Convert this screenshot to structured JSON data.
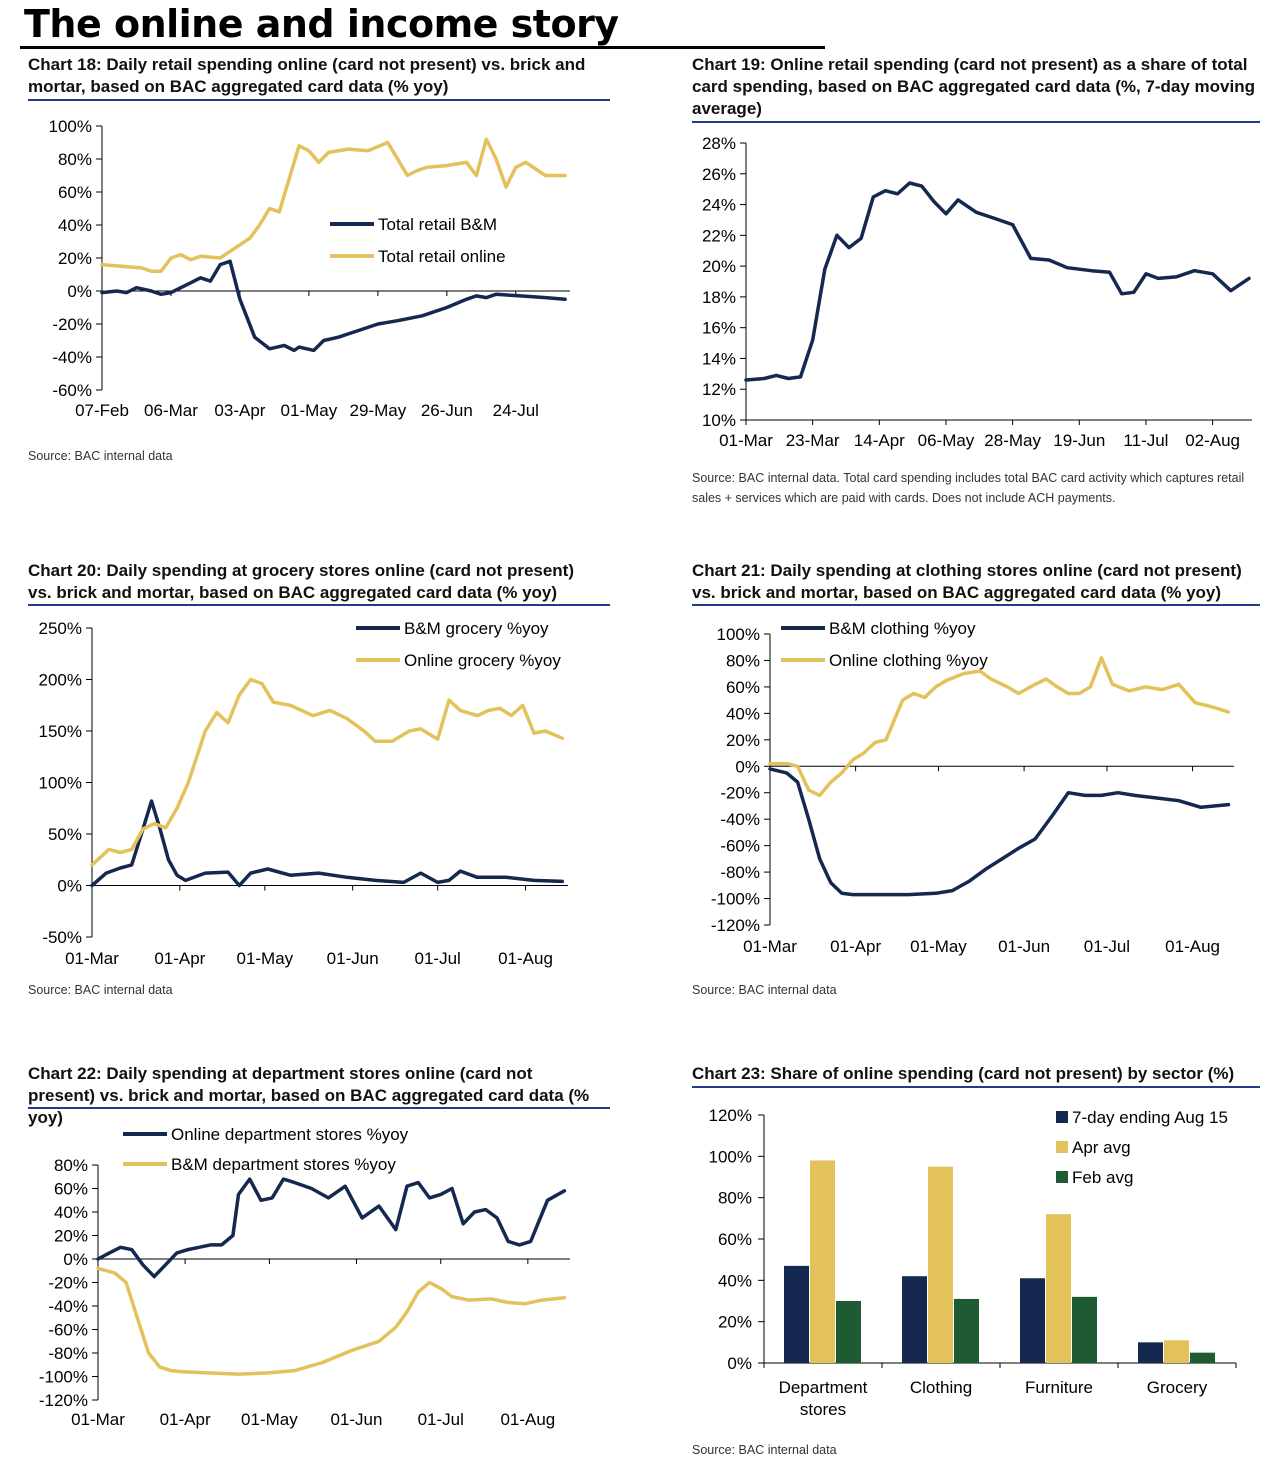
{
  "page": {
    "title": "The online and income story"
  },
  "colors": {
    "navy": "#142850",
    "gold": "#e3c15b",
    "green": "#1e5a32",
    "rule": "#1f3c88"
  },
  "chart_data": [
    {
      "id": "c18",
      "type": "line",
      "title": "Chart 18: Daily retail spending online (card not present) vs. brick and mortar, based on BAC aggregated card data (% yoy)",
      "source": "Source: BAC internal data",
      "ylim": [
        -60,
        100
      ],
      "yticks": [
        -60,
        -40,
        -20,
        0,
        20,
        40,
        60,
        80,
        100
      ],
      "yfmt": "%",
      "xlim": [
        0,
        190
      ],
      "xticks": [
        0,
        28,
        56,
        84,
        112,
        140,
        168
      ],
      "xlabels": [
        "07-Feb",
        "06-Mar",
        "03-Apr",
        "01-May",
        "29-May",
        "26-Jun",
        "24-Jul"
      ],
      "legend": "right",
      "series": [
        {
          "name": "Total retail B&M",
          "color": "navy",
          "x": [
            0,
            6,
            10,
            14,
            20,
            24,
            28,
            32,
            36,
            40,
            44,
            48,
            52,
            56,
            62,
            68,
            74,
            78,
            80,
            86,
            90,
            96,
            100,
            104,
            112,
            120,
            130,
            140,
            148,
            152,
            156,
            160,
            170,
            180,
            188
          ],
          "y": [
            -1,
            0,
            -1,
            2,
            0,
            -2,
            -1,
            2,
            5,
            8,
            6,
            16,
            18,
            -5,
            -28,
            -35,
            -33,
            -36,
            -34,
            -36,
            -30,
            -28,
            -26,
            -24,
            -20,
            -18,
            -15,
            -10,
            -5,
            -3,
            -4,
            -2,
            -3,
            -4,
            -5
          ]
        },
        {
          "name": "Total retail online",
          "color": "gold",
          "x": [
            0,
            8,
            16,
            20,
            24,
            28,
            32,
            36,
            40,
            48,
            56,
            60,
            64,
            68,
            72,
            76,
            80,
            84,
            88,
            92,
            100,
            108,
            116,
            120,
            124,
            128,
            132,
            140,
            148,
            152,
            156,
            160,
            164,
            168,
            172,
            180,
            188
          ],
          "y": [
            16,
            15,
            14,
            12,
            12,
            20,
            22,
            19,
            21,
            20,
            28,
            32,
            40,
            50,
            48,
            68,
            88,
            85,
            78,
            84,
            86,
            85,
            90,
            80,
            70,
            73,
            75,
            76,
            78,
            70,
            92,
            80,
            63,
            75,
            78,
            70,
            70
          ]
        }
      ]
    },
    {
      "id": "c19",
      "type": "line",
      "title": "Chart 19: Online retail spending (card not present) as a share of total card spending, based on BAC aggregated card data (%, 7-day moving average)",
      "source": "Source: BAC internal data. Total card spending includes total BAC card activity which captures retail sales + services which are paid with cards. Does not include ACH payments.",
      "ylim": [
        10,
        28
      ],
      "yticks": [
        10,
        12,
        14,
        16,
        18,
        20,
        22,
        24,
        26,
        28
      ],
      "yfmt": "%",
      "xlim": [
        0,
        167
      ],
      "xticks": [
        0,
        22,
        44,
        66,
        88,
        110,
        132,
        154
      ],
      "xlabels": [
        "01-Mar",
        "23-Mar",
        "14-Apr",
        "06-May",
        "28-May",
        "19-Jun",
        "11-Jul",
        "02-Aug"
      ],
      "series": [
        {
          "name": "",
          "color": "navy",
          "x": [
            0,
            6,
            10,
            14,
            18,
            22,
            26,
            30,
            34,
            38,
            42,
            46,
            50,
            54,
            58,
            62,
            66,
            70,
            76,
            82,
            88,
            94,
            100,
            106,
            114,
            120,
            124,
            128,
            132,
            136,
            142,
            148,
            154,
            160,
            166
          ],
          "y": [
            12.6,
            12.7,
            12.9,
            12.7,
            12.8,
            15.2,
            19.8,
            22.0,
            21.2,
            21.8,
            24.5,
            24.9,
            24.7,
            25.4,
            25.2,
            24.2,
            23.4,
            24.3,
            23.5,
            23.1,
            22.7,
            20.5,
            20.4,
            19.9,
            19.7,
            19.6,
            18.2,
            18.3,
            19.5,
            19.2,
            19.3,
            19.7,
            19.5,
            18.4,
            19.2
          ]
        }
      ]
    },
    {
      "id": "c20",
      "type": "line",
      "title": "Chart 20: Daily spending at grocery stores online (card not present) vs. brick and mortar, based on BAC aggregated card data (% yoy)",
      "source": "Source: BAC internal data",
      "ylim": [
        -50,
        250
      ],
      "yticks": [
        -50,
        0,
        50,
        100,
        150,
        200,
        250
      ],
      "yfmt": "%",
      "xlim": [
        0,
        168
      ],
      "xticks": [
        0,
        31,
        61,
        92,
        122,
        153
      ],
      "xlabels": [
        "01-Mar",
        "01-Apr",
        "01-May",
        "01-Jun",
        "01-Jul",
        "01-Aug"
      ],
      "legend": "top-right",
      "series": [
        {
          "name": "B&M grocery %yoy",
          "color": "navy",
          "x": [
            0,
            5,
            10,
            14,
            18,
            21,
            24,
            27,
            30,
            33,
            40,
            48,
            52,
            56,
            62,
            70,
            80,
            90,
            100,
            110,
            116,
            122,
            126,
            130,
            136,
            146,
            156,
            166
          ],
          "y": [
            0,
            12,
            17,
            20,
            55,
            82,
            55,
            25,
            10,
            5,
            12,
            13,
            0,
            12,
            16,
            10,
            12,
            8,
            5,
            3,
            12,
            3,
            5,
            14,
            8,
            8,
            5,
            4
          ]
        },
        {
          "name": "Online grocery %yoy",
          "color": "gold",
          "x": [
            0,
            6,
            10,
            14,
            18,
            22,
            26,
            30,
            34,
            40,
            44,
            48,
            52,
            56,
            60,
            64,
            70,
            78,
            84,
            90,
            96,
            100,
            106,
            112,
            116,
            122,
            126,
            130,
            136,
            140,
            144,
            148,
            152,
            156,
            160,
            166
          ],
          "y": [
            20,
            35,
            32,
            35,
            55,
            60,
            56,
            75,
            100,
            150,
            168,
            158,
            185,
            200,
            196,
            178,
            175,
            165,
            170,
            162,
            150,
            140,
            140,
            150,
            152,
            142,
            180,
            170,
            165,
            170,
            172,
            165,
            175,
            148,
            150,
            143
          ]
        }
      ]
    },
    {
      "id": "c21",
      "type": "line",
      "title": "Chart 21: Daily spending at clothing stores online (card not present) vs. brick and mortar, based on BAC aggregated card data (% yoy)",
      "source": "Source: BAC internal data",
      "ylim": [
        -120,
        100
      ],
      "yticks": [
        -120,
        -100,
        -80,
        -60,
        -40,
        -20,
        0,
        20,
        40,
        60,
        80,
        100
      ],
      "yfmt": "%",
      "xlim": [
        0,
        168
      ],
      "xticks": [
        0,
        31,
        61,
        92,
        122,
        153
      ],
      "xlabels": [
        "01-Mar",
        "01-Apr",
        "01-May",
        "01-Jun",
        "01-Jul",
        "01-Aug"
      ],
      "legend": "top-left",
      "series": [
        {
          "name": "B&M clothing %yoy",
          "color": "navy",
          "x": [
            0,
            6,
            10,
            14,
            18,
            22,
            26,
            30,
            40,
            50,
            60,
            66,
            72,
            78,
            84,
            90,
            96,
            102,
            108,
            114,
            120,
            126,
            132,
            140,
            148,
            156,
            166
          ],
          "y": [
            -2,
            -5,
            -12,
            -40,
            -70,
            -88,
            -96,
            -97,
            -97,
            -97,
            -96,
            -94,
            -87,
            -78,
            -70,
            -62,
            -55,
            -38,
            -20,
            -22,
            -22,
            -20,
            -22,
            -24,
            -26,
            -31,
            -29
          ]
        },
        {
          "name": "Online clothing %yoy",
          "color": "gold",
          "x": [
            0,
            6,
            10,
            14,
            18,
            22,
            26,
            30,
            34,
            38,
            42,
            48,
            52,
            56,
            60,
            64,
            70,
            76,
            80,
            86,
            90,
            96,
            100,
            104,
            108,
            112,
            116,
            120,
            124,
            130,
            136,
            142,
            148,
            154,
            160,
            166
          ],
          "y": [
            2,
            2,
            0,
            -18,
            -22,
            -12,
            -5,
            5,
            10,
            18,
            20,
            50,
            55,
            52,
            60,
            65,
            70,
            72,
            66,
            60,
            55,
            62,
            66,
            60,
            55,
            55,
            60,
            82,
            62,
            57,
            60,
            58,
            62,
            48,
            45,
            41
          ]
        }
      ]
    },
    {
      "id": "c22",
      "type": "line",
      "title": "Chart 22: Daily spending at department stores online (card not present) vs. brick and mortar, based on BAC aggregated card data (% yoy)",
      "source": "",
      "ylim": [
        -120,
        80
      ],
      "yticks": [
        -120,
        -100,
        -80,
        -60,
        -40,
        -20,
        0,
        20,
        40,
        60,
        80
      ],
      "yfmt": "%",
      "xlim": [
        0,
        168
      ],
      "xticks": [
        0,
        31,
        61,
        92,
        122,
        153
      ],
      "xlabels": [
        "01-Mar",
        "01-Apr",
        "01-May",
        "01-Jun",
        "01-Jul",
        "01-Aug"
      ],
      "legend": "top-left",
      "series": [
        {
          "name": "Online department stores %yoy",
          "color": "navy",
          "x": [
            0,
            4,
            8,
            12,
            16,
            20,
            24,
            28,
            32,
            36,
            40,
            44,
            48,
            50,
            54,
            58,
            62,
            66,
            70,
            76,
            82,
            88,
            94,
            100,
            106,
            110,
            114,
            118,
            122,
            126,
            130,
            134,
            138,
            142,
            146,
            150,
            154,
            160,
            166
          ],
          "y": [
            0,
            5,
            10,
            8,
            -5,
            -15,
            -5,
            5,
            8,
            10,
            12,
            12,
            20,
            55,
            68,
            50,
            52,
            68,
            65,
            60,
            52,
            62,
            35,
            45,
            25,
            62,
            65,
            52,
            55,
            60,
            30,
            40,
            42,
            35,
            15,
            12,
            15,
            50,
            58
          ]
        },
        {
          "name": "B&M department stores %yoy",
          "color": "gold",
          "x": [
            0,
            6,
            10,
            14,
            18,
            22,
            26,
            30,
            40,
            50,
            60,
            70,
            80,
            90,
            100,
            106,
            110,
            114,
            118,
            122,
            126,
            132,
            140,
            146,
            152,
            158,
            166
          ],
          "y": [
            -8,
            -12,
            -20,
            -50,
            -80,
            -92,
            -95,
            -96,
            -97,
            -98,
            -97,
            -95,
            -88,
            -78,
            -70,
            -58,
            -45,
            -28,
            -20,
            -25,
            -32,
            -35,
            -34,
            -37,
            -38,
            -35,
            -33
          ]
        }
      ]
    },
    {
      "id": "c23",
      "type": "bar",
      "title": "Chart 23: Share of online spending (card not present) by sector (%)",
      "source": "Source: BAC internal data",
      "ylim": [
        0,
        120
      ],
      "yticks": [
        0,
        20,
        40,
        60,
        80,
        100,
        120
      ],
      "yfmt": "%",
      "categories": [
        "Department stores",
        "Clothing",
        "Furniture",
        "Grocery"
      ],
      "category_lines": [
        [
          "Department",
          "stores"
        ],
        [
          "Clothing"
        ],
        [
          "Furniture"
        ],
        [
          "Grocery"
        ]
      ],
      "legend": "top-right",
      "series": [
        {
          "name": "7-day ending Aug 15",
          "color": "navy",
          "values": [
            47,
            42,
            41,
            10
          ]
        },
        {
          "name": "Apr avg",
          "color": "gold",
          "values": [
            98,
            95,
            72,
            11
          ]
        },
        {
          "name": "Feb avg",
          "color": "green",
          "values": [
            30,
            31,
            32,
            5
          ]
        }
      ]
    }
  ]
}
